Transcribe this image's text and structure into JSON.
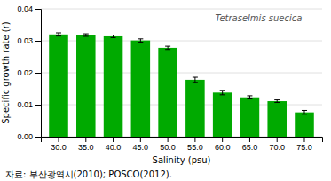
{
  "chart_data": {
    "type": "bar",
    "categories": [
      "30.0",
      "35.0",
      "40.0",
      "45.0",
      "50.0",
      "55.0",
      "60.0",
      "65.0",
      "70.0",
      "75.0"
    ],
    "values": [
      0.032,
      0.0318,
      0.0314,
      0.0301,
      0.0278,
      0.0178,
      0.0138,
      0.0123,
      0.0111,
      0.0076
    ],
    "errors": [
      0.0005,
      0.0004,
      0.0004,
      0.0005,
      0.0005,
      0.0008,
      0.0007,
      0.0005,
      0.0004,
      0.0006
    ],
    "color": "#00aa00",
    "x_label": "Salinity (psu)",
    "y_label": "Specific growth rate (r)",
    "ylim": [
      0.0,
      0.04
    ],
    "yticks": [
      {
        "value": 0.0,
        "label": "0.00"
      },
      0.01,
      0.02,
      0.03,
      0.04
    ],
    "grid": true,
    "annotations": [
      "Tetraselmis suecica",
      "자료: 부산광역시(2010); POSCO(2012)."
    ]
  }
}
